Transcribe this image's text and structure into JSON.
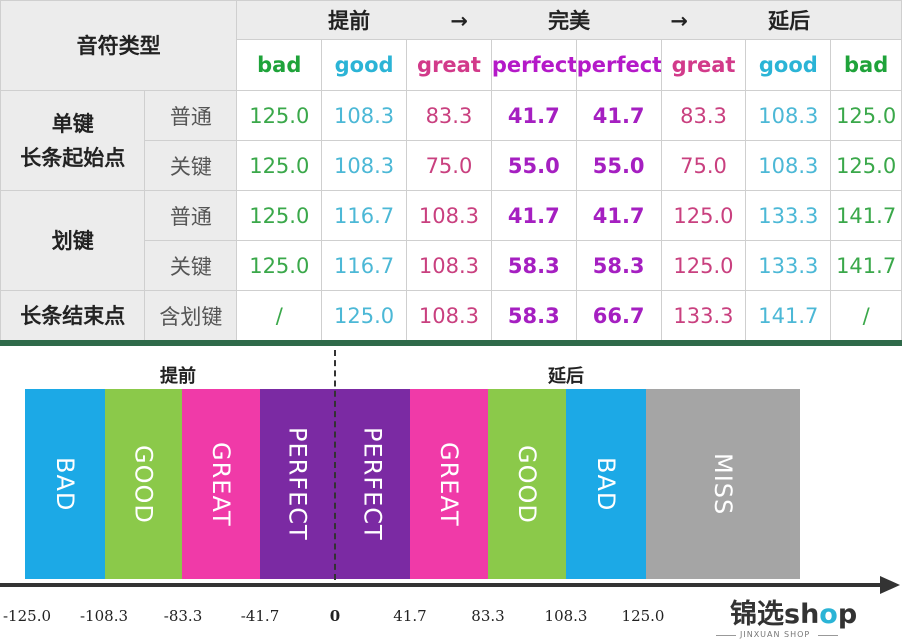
{
  "table": {
    "note_type_label": "音符类型",
    "direction": {
      "early": "提前",
      "arrow1": "→",
      "perfect": "完美",
      "arrow2": "→",
      "late": "延后"
    },
    "columns": [
      "bad",
      "good",
      "great",
      "perfect",
      "perfect",
      "great",
      "good",
      "bad"
    ],
    "groups": [
      {
        "name": "单键\n长条起始点",
        "rows": [
          {
            "sub": "普通",
            "values": [
              "125.0",
              "108.3",
              "83.3",
              "41.7",
              "41.7",
              "83.3",
              "108.3",
              "125.0"
            ]
          },
          {
            "sub": "关键",
            "values": [
              "125.0",
              "108.3",
              "75.0",
              "55.0",
              "55.0",
              "75.0",
              "108.3",
              "125.0"
            ]
          }
        ]
      },
      {
        "name": "划键",
        "rows": [
          {
            "sub": "普通",
            "values": [
              "125.0",
              "116.7",
              "108.3",
              "41.7",
              "41.7",
              "125.0",
              "133.3",
              "141.7"
            ]
          },
          {
            "sub": "关键",
            "values": [
              "125.0",
              "116.7",
              "108.3",
              "58.3",
              "58.3",
              "125.0",
              "133.3",
              "141.7"
            ]
          }
        ]
      },
      {
        "name": "长条结束点",
        "rows": [
          {
            "sub": "含划键",
            "values": [
              "/",
              "125.0",
              "108.3",
              "58.3",
              "66.7",
              "133.3",
              "141.7",
              "/"
            ]
          }
        ]
      }
    ]
  },
  "diagram": {
    "early_label": "提前",
    "late_label": "延后",
    "bands": [
      {
        "label": "BAD",
        "color": "#1ca9e6"
      },
      {
        "label": "GOOD",
        "color": "#8bc94a"
      },
      {
        "label": "GREAT",
        "color": "#f03aa8"
      },
      {
        "label": "PERFECT",
        "color": "#7b2aa3"
      },
      {
        "label": "PERFECT",
        "color": "#7b2aa3"
      },
      {
        "label": "GREAT",
        "color": "#f03aa8"
      },
      {
        "label": "GOOD",
        "color": "#8bc94a"
      },
      {
        "label": "BAD",
        "color": "#1ca9e6"
      },
      {
        "label": "MISS",
        "color": "#a5a5a5"
      }
    ],
    "ticks": [
      "-125.0",
      "-108.3",
      "-83.3",
      "-41.7",
      "0",
      "41.7",
      "83.3",
      "108.3",
      "125.0"
    ]
  },
  "logo": {
    "main_prefix": "锦选sh",
    "main_o": "o",
    "main_suffix": "p",
    "sub": "JINXUAN SHOP"
  }
}
